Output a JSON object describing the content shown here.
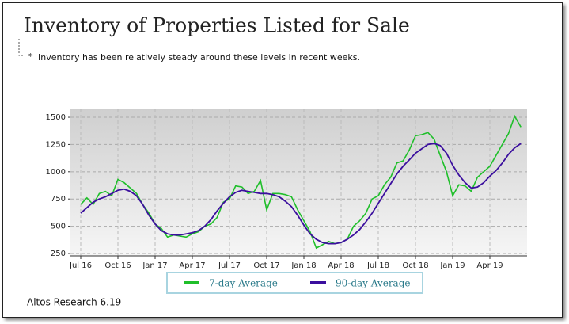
{
  "chart_data": {
    "type": "line",
    "title": "Inventory of Properties Listed for Sale",
    "subtitle": "Inventory has been relatively steady around these levels in recent weeks.",
    "source": "Altos Research 6.19",
    "categories": [
      "Jul 16",
      null,
      null,
      null,
      null,
      null,
      "Oct 16",
      null,
      null,
      null,
      null,
      null,
      "Jan 17",
      null,
      null,
      null,
      null,
      null,
      "Apr 17",
      null,
      null,
      null,
      null,
      null,
      "Jul 17",
      null,
      null,
      null,
      null,
      null,
      "Oct 17",
      null,
      null,
      null,
      null,
      null,
      "Jan 18",
      null,
      null,
      null,
      null,
      null,
      "Apr 18",
      null,
      null,
      null,
      null,
      null,
      "Jul 18",
      null,
      null,
      null,
      null,
      null,
      "Oct 18",
      null,
      null,
      null,
      null,
      null,
      "Jan 19",
      null,
      null,
      null,
      null,
      null,
      "Apr 19",
      null,
      null,
      null,
      null,
      null
    ],
    "series": [
      {
        "name": "7-day Average",
        "color": "#1fbf2a",
        "values": [
          700,
          760,
          700,
          800,
          820,
          780,
          930,
          900,
          850,
          800,
          700,
          620,
          520,
          480,
          400,
          420,
          410,
          400,
          430,
          450,
          500,
          520,
          580,
          720,
          750,
          870,
          860,
          800,
          820,
          920,
          650,
          800,
          800,
          790,
          770,
          650,
          550,
          450,
          300,
          330,
          360,
          340,
          350,
          380,
          500,
          550,
          620,
          750,
          780,
          880,
          950,
          1080,
          1100,
          1200,
          1330,
          1340,
          1360,
          1300,
          1150,
          1000,
          780,
          880,
          870,
          820,
          950,
          1000,
          1050,
          1150,
          1250,
          1350,
          1510,
          1410
        ]
      },
      {
        "name": "90-day Average",
        "color": "#3b0f9e",
        "values": [
          620,
          670,
          720,
          750,
          770,
          800,
          830,
          840,
          820,
          780,
          700,
          600,
          520,
          460,
          430,
          420,
          420,
          430,
          440,
          460,
          500,
          560,
          640,
          710,
          770,
          810,
          830,
          820,
          810,
          800,
          800,
          790,
          770,
          730,
          680,
          600,
          510,
          430,
          380,
          350,
          340,
          340,
          350,
          380,
          420,
          470,
          540,
          620,
          710,
          800,
          890,
          980,
          1050,
          1110,
          1170,
          1210,
          1250,
          1260,
          1240,
          1170,
          1060,
          970,
          900,
          850,
          860,
          900,
          960,
          1010,
          1080,
          1160,
          1220,
          1260
        ]
      }
    ],
    "ylim": [
      228,
      1573
    ],
    "yticks": [
      250,
      500,
      750,
      1000,
      1250,
      1500
    ],
    "grid": true,
    "legend": "bottom"
  }
}
